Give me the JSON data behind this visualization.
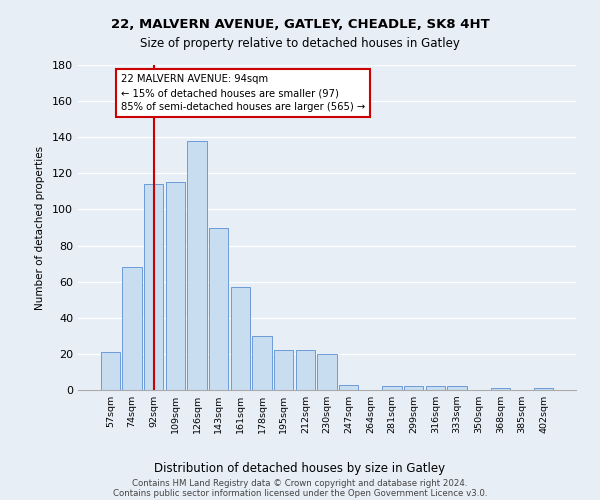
{
  "title1": "22, MALVERN AVENUE, GATLEY, CHEADLE, SK8 4HT",
  "title2": "Size of property relative to detached houses in Gatley",
  "xlabel": "Distribution of detached houses by size in Gatley",
  "ylabel": "Number of detached properties",
  "bar_values": [
    21,
    68,
    114,
    115,
    138,
    90,
    57,
    30,
    22,
    22,
    20,
    3,
    0,
    2,
    2,
    2,
    2,
    0,
    1,
    0,
    1
  ],
  "bar_labels": [
    "57sqm",
    "74sqm",
    "92sqm",
    "109sqm",
    "126sqm",
    "143sqm",
    "161sqm",
    "178sqm",
    "195sqm",
    "212sqm",
    "230sqm",
    "247sqm",
    "264sqm",
    "281sqm",
    "299sqm",
    "316sqm",
    "333sqm",
    "350sqm",
    "368sqm",
    "385sqm",
    "402sqm"
  ],
  "bar_color": "#c9ddf1",
  "bar_edge_color": "#5b8fd4",
  "vline_x": 2,
  "vline_color": "#cc0000",
  "annotation_text": "22 MALVERN AVENUE: 94sqm\n← 15% of detached houses are smaller (97)\n85% of semi-detached houses are larger (565) →",
  "annotation_box_color": "#ffffff",
  "annotation_box_edge": "#cc0000",
  "ylim": [
    0,
    180
  ],
  "yticks": [
    0,
    20,
    40,
    60,
    80,
    100,
    120,
    140,
    160,
    180
  ],
  "footer1": "Contains HM Land Registry data © Crown copyright and database right 2024.",
  "footer2": "Contains public sector information licensed under the Open Government Licence v3.0.",
  "bg_color": "#e8eef6",
  "plot_bg_color": "#e8eef6",
  "grid_color": "#ffffff"
}
